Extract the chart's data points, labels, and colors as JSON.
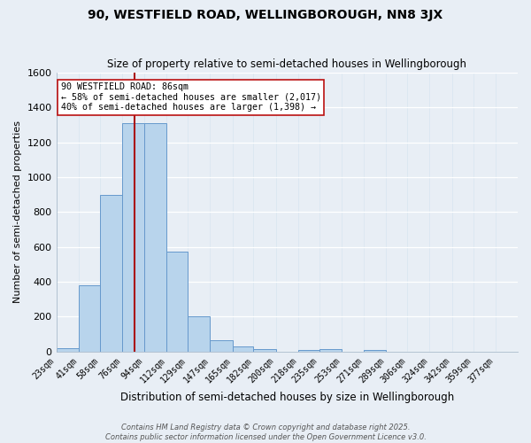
{
  "title": "90, WESTFIELD ROAD, WELLINGBOROUGH, NN8 3JX",
  "subtitle": "Size of property relative to semi-detached houses in Wellingborough",
  "xlabel": "Distribution of semi-detached houses by size in Wellingborough",
  "ylabel": "Number of semi-detached properties",
  "bin_labels": [
    "23sqm",
    "41sqm",
    "58sqm",
    "76sqm",
    "94sqm",
    "112sqm",
    "129sqm",
    "147sqm",
    "165sqm",
    "182sqm",
    "200sqm",
    "218sqm",
    "235sqm",
    "253sqm",
    "271sqm",
    "289sqm",
    "306sqm",
    "324sqm",
    "342sqm",
    "359sqm",
    "377sqm"
  ],
  "bin_values": [
    18,
    380,
    900,
    1310,
    1310,
    575,
    200,
    65,
    28,
    12,
    0,
    10,
    12,
    0,
    8,
    0,
    0,
    0,
    0,
    0,
    0
  ],
  "bar_color": "#b8d4ec",
  "bar_edge_color": "#6699cc",
  "highlight_color": "#aa1111",
  "property_sqm": 86,
  "bin_edges": [
    23,
    41,
    58,
    76,
    94,
    112,
    129,
    147,
    165,
    182,
    200,
    218,
    235,
    253,
    271,
    289,
    306,
    324,
    342,
    359,
    377,
    395
  ],
  "annotation_title": "90 WESTFIELD ROAD: 86sqm",
  "annotation_line1": "← 58% of semi-detached houses are smaller (2,017)",
  "annotation_line2": "40% of semi-detached houses are larger (1,398) →",
  "annotation_box_color": "#ffffff",
  "annotation_box_edge": "#bb1111",
  "footer1": "Contains HM Land Registry data © Crown copyright and database right 2025.",
  "footer2": "Contains public sector information licensed under the Open Government Licence v3.0.",
  "ylim": [
    0,
    1600
  ],
  "background_color": "#e8eef5",
  "grid_color": "#d0dce8",
  "title_fontsize": 10,
  "subtitle_fontsize": 8.5,
  "ylabel_fontsize": 8,
  "xlabel_fontsize": 8.5
}
